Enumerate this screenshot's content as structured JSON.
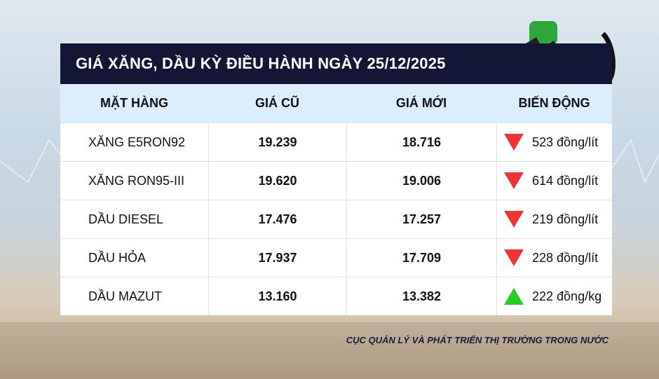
{
  "title": "GIÁ XĂNG, DẦU KỲ ĐIỀU HÀNH NGÀY 25/12/2025",
  "headers": [
    "MẶT HÀNG",
    "GIÁ CŨ",
    "GIÁ MỚI",
    "BIẾN ĐỘNG"
  ],
  "rows": [
    {
      "item": "XĂNG E5RON92",
      "old": "19.239",
      "new": "18.716",
      "direction": "down",
      "change": "523 đồng/lít"
    },
    {
      "item": "XĂNG RON95-III",
      "old": "19.620",
      "new": "19.006",
      "direction": "down",
      "change": "614 đồng/lít"
    },
    {
      "item": "DẦU DIESEL",
      "old": "17.476",
      "new": "17.257",
      "direction": "down",
      "change": "219 đồng/lít"
    },
    {
      "item": "DẦU HỎA",
      "old": "17.937",
      "new": "17.709",
      "direction": "down",
      "change": "228 đồng/lít"
    },
    {
      "item": "DẦU MAZUT",
      "old": "13.160",
      "new": "13.382",
      "direction": "up",
      "change": "222 đồng/kg"
    }
  ],
  "source": "CỤC QUẢN LÝ VÀ PHÁT TRIỂN THỊ TRƯỜNG TRONG NƯỚC",
  "colors": {
    "title_bg": "#131735",
    "header_bg": "#dcedfb",
    "down": "#f03434",
    "up": "#22d022"
  },
  "icons": [
    "fuel-pump-nozzle-icon",
    "triangle-down-icon",
    "triangle-up-icon"
  ]
}
